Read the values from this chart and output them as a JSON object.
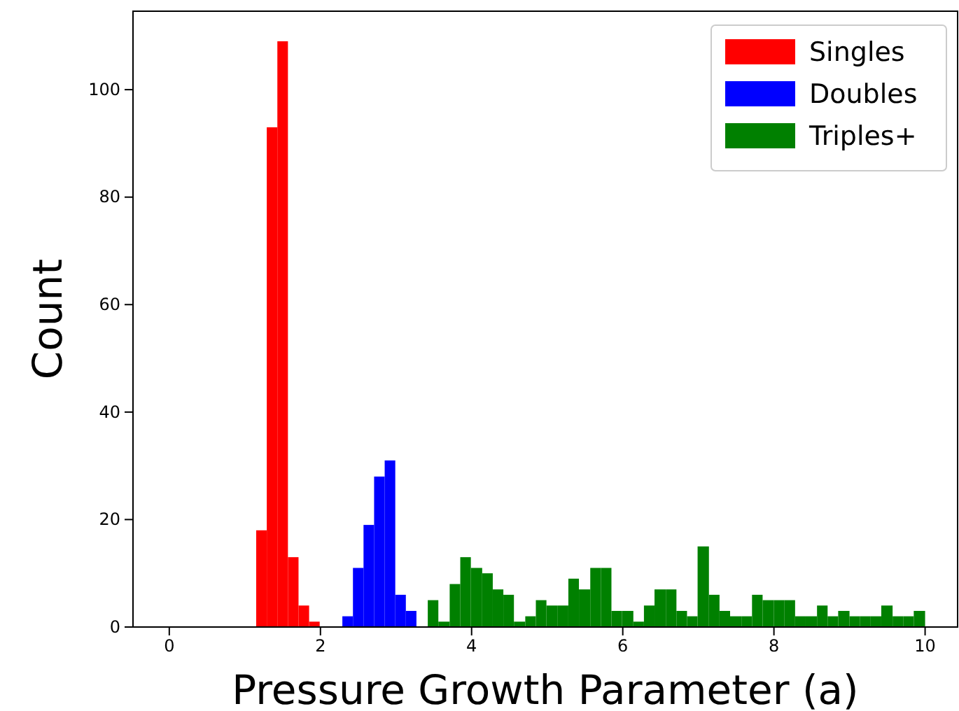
{
  "chart_data": {
    "type": "histogram",
    "xlabel": "Pressure Growth Parameter (a)",
    "ylabel": "Count",
    "xlim": [
      -0.48,
      10.43
    ],
    "ylim": [
      0,
      114.6
    ],
    "xticks": [
      0,
      2,
      4,
      6,
      8,
      10
    ],
    "yticks": [
      0,
      20,
      40,
      60,
      80,
      100
    ],
    "grid": false,
    "legend": "top right",
    "bins": [
      1.15,
      1.29,
      1.43,
      1.57,
      1.71,
      1.85,
      1.99,
      2.29,
      2.43,
      2.57,
      2.71,
      2.85,
      2.99,
      3.13,
      3.27,
      3.42,
      3.56,
      3.71,
      3.85,
      3.99,
      4.14,
      4.28,
      4.42,
      4.56,
      4.71,
      4.85,
      4.99,
      5.14,
      5.28,
      5.42,
      5.57,
      5.71,
      5.85,
      5.99,
      6.14,
      6.28,
      6.42,
      6.57,
      6.71,
      6.85,
      6.99,
      7.14,
      7.28,
      7.42,
      7.57,
      7.71,
      7.85,
      8.0,
      8.14,
      8.28,
      8.42,
      8.57,
      8.71,
      8.85,
      9.0,
      9.14,
      9.28,
      9.42,
      9.57,
      9.71,
      9.85,
      10.0
    ],
    "series": [
      {
        "name": "Singles",
        "color": "#ff0000",
        "values": [
          18,
          93,
          109,
          13,
          4,
          1,
          null,
          null,
          null,
          null,
          null,
          null,
          null,
          null,
          null,
          null,
          null,
          null,
          null,
          null,
          null,
          null,
          null,
          null,
          null,
          null,
          null,
          null,
          null,
          null,
          null,
          null,
          null,
          null,
          null,
          null,
          null,
          null,
          null,
          null,
          null,
          null,
          null,
          null,
          null,
          null,
          null,
          null,
          null,
          null,
          null,
          null,
          null,
          null,
          null,
          null,
          null,
          null,
          null,
          null,
          null
        ]
      },
      {
        "name": "Doubles",
        "color": "#0000ff",
        "values": [
          null,
          null,
          null,
          null,
          null,
          null,
          null,
          2,
          11,
          19,
          28,
          31,
          6,
          3,
          null,
          null,
          null,
          null,
          null,
          null,
          null,
          null,
          null,
          null,
          null,
          null,
          null,
          null,
          null,
          null,
          null,
          null,
          null,
          null,
          null,
          null,
          null,
          null,
          null,
          null,
          null,
          null,
          null,
          null,
          null,
          null,
          null,
          null,
          null,
          null,
          null,
          null,
          null,
          null,
          null,
          null,
          null,
          null,
          null,
          null,
          null
        ]
      },
      {
        "name": "Triples+",
        "color": "#008000",
        "values": [
          null,
          null,
          null,
          null,
          null,
          null,
          null,
          null,
          null,
          null,
          null,
          null,
          null,
          null,
          null,
          5,
          1,
          8,
          13,
          11,
          10,
          7,
          6,
          1,
          2,
          5,
          4,
          4,
          9,
          7,
          11,
          11,
          3,
          3,
          1,
          4,
          7,
          7,
          3,
          2,
          15,
          6,
          3,
          2,
          2,
          6,
          5,
          5,
          5,
          2,
          2,
          4,
          2,
          3,
          2,
          2,
          2,
          4,
          2,
          2,
          3
        ]
      }
    ]
  }
}
